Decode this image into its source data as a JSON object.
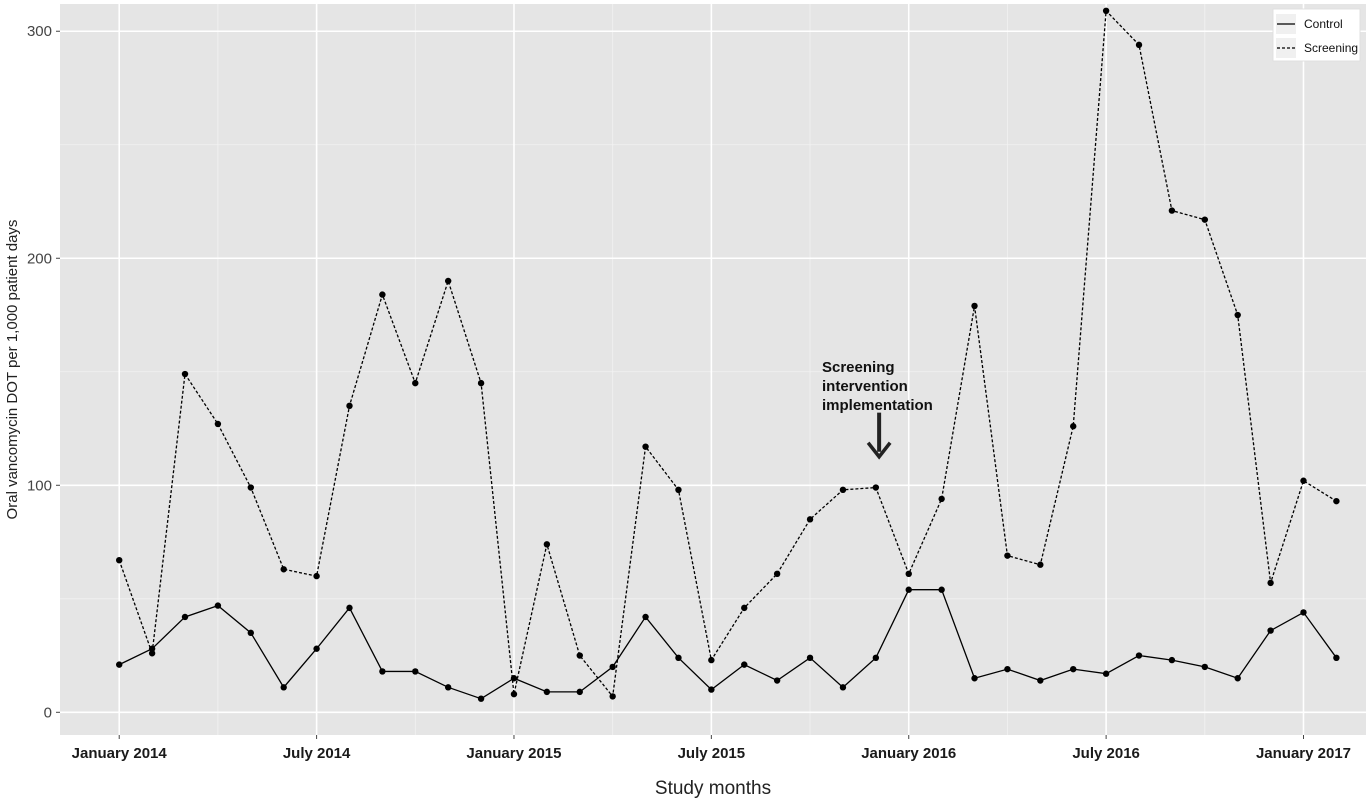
{
  "chart_data": {
    "type": "line",
    "title": "",
    "xlabel": "Study months",
    "ylabel": "Oral vancomycin DOT per 1,000 patient days",
    "ylim": [
      -10,
      312
    ],
    "y_ticks": [
      0,
      100,
      200,
      300
    ],
    "x_ticks": [
      "January 2014",
      "July 2014",
      "January 2015",
      "July 2015",
      "January 2016",
      "July 2016",
      "January 2017"
    ],
    "x_tick_month_index": [
      0,
      6,
      12,
      18,
      24,
      30,
      36
    ],
    "x_month_range": [
      -1.8,
      37.9
    ],
    "grid": true,
    "legend": {
      "position": "top-right",
      "entries": [
        "Control",
        "Screening"
      ]
    },
    "annotation": {
      "lines": [
        "Screening",
        "intervention",
        "implementation"
      ],
      "month": 23.1,
      "arrow_from_y": 132,
      "arrow_to_y": 113
    },
    "series": [
      {
        "name": "Control",
        "style": "solid",
        "x": [
          0,
          1,
          2,
          3,
          4,
          5,
          6,
          7,
          8,
          9,
          10,
          11,
          12,
          13,
          14,
          15,
          16,
          17,
          18,
          19,
          20,
          21,
          22,
          23,
          24,
          25,
          26,
          27,
          28,
          29,
          30,
          31,
          32,
          33,
          34,
          35,
          36,
          37
        ],
        "values": [
          21,
          28,
          42,
          47,
          35,
          11,
          28,
          46,
          18,
          18,
          11,
          6,
          15,
          9,
          9,
          20,
          42,
          24,
          10,
          21,
          14,
          24,
          11,
          24,
          54,
          54,
          15,
          19,
          14,
          19,
          17,
          25,
          23,
          20,
          15,
          36,
          44,
          24
        ]
      },
      {
        "name": "Screening",
        "style": "dashed",
        "x": [
          0,
          1,
          2,
          3,
          4,
          5,
          6,
          7,
          8,
          9,
          10,
          11,
          12,
          13,
          14,
          15,
          16,
          17,
          18,
          19,
          20,
          21,
          22,
          23,
          24,
          25,
          26,
          27,
          28,
          29,
          30,
          31,
          32,
          33,
          34,
          35,
          36,
          37
        ],
        "values": [
          67,
          26,
          149,
          127,
          99,
          63,
          60,
          135,
          184,
          145,
          190,
          145,
          8,
          74,
          25,
          7,
          117,
          98,
          23,
          46,
          61,
          85,
          98,
          99,
          61,
          94,
          179,
          69,
          65,
          126,
          309,
          294,
          221,
          217,
          175,
          57,
          102,
          93
        ]
      }
    ]
  }
}
